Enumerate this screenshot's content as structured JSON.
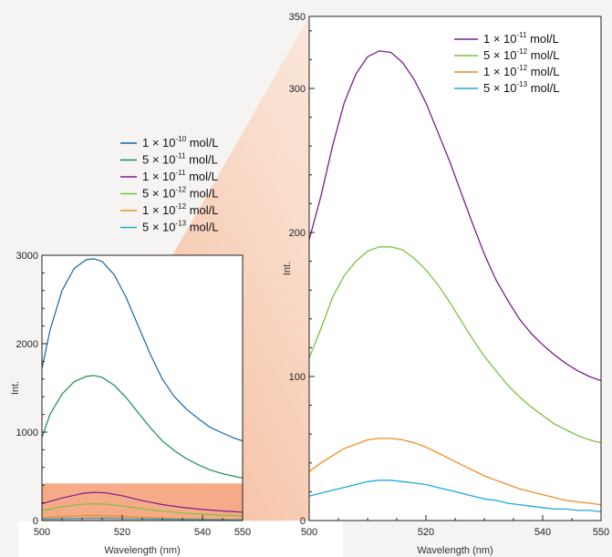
{
  "chart_data": [
    {
      "type": "line",
      "xlabel": "Wavelength (nm)",
      "ylabel": "Int.",
      "xlim": [
        500,
        550
      ],
      "ylim": [
        0,
        3000
      ],
      "xticks": [
        "500",
        "520",
        "540",
        "550"
      ],
      "yticks": [
        "0",
        "1000",
        "2000",
        "3000"
      ],
      "legend_position": "top",
      "zoom_band_ylim": [
        0,
        420
      ],
      "series": [
        {
          "name": "1 × 10-10 mol/L",
          "base": "1 × 10",
          "exp": "-10",
          "unit": " mol/L",
          "color": "#1565a8",
          "x": [
            500,
            502,
            505,
            508,
            511,
            513,
            515,
            518,
            521,
            524,
            527,
            530,
            533,
            536,
            539,
            542,
            545,
            548,
            550
          ],
          "y": [
            1720,
            2150,
            2600,
            2850,
            2950,
            2960,
            2930,
            2780,
            2520,
            2200,
            1880,
            1600,
            1400,
            1260,
            1150,
            1050,
            990,
            930,
            900
          ]
        },
        {
          "name": "5 × 10-11 mol/L",
          "base": "5 × 10",
          "exp": "-11",
          "unit": " mol/L",
          "color": "#14904a",
          "x": [
            500,
            502,
            505,
            508,
            511,
            513,
            515,
            518,
            521,
            524,
            527,
            530,
            533,
            536,
            539,
            542,
            545,
            548,
            550
          ],
          "y": [
            940,
            1200,
            1430,
            1570,
            1630,
            1640,
            1620,
            1530,
            1390,
            1220,
            1050,
            900,
            790,
            700,
            630,
            570,
            530,
            500,
            480
          ]
        },
        {
          "name": "1 × 10-11 mol/L",
          "base": "1 × 10",
          "exp": "-11",
          "unit": " mol/L",
          "color": "#7b1e8a",
          "x": [
            500,
            505,
            510,
            513,
            516,
            520,
            525,
            530,
            535,
            540,
            545,
            550
          ],
          "y": [
            190,
            255,
            305,
            320,
            312,
            280,
            225,
            180,
            148,
            125,
            108,
            95
          ]
        },
        {
          "name": "5 × 10-12 mol/L",
          "base": "5 × 10",
          "exp": "-12",
          "unit": " mol/L",
          "color": "#7cc142",
          "x": [
            500,
            505,
            510,
            513,
            516,
            520,
            525,
            530,
            535,
            540,
            545,
            550
          ],
          "y": [
            113,
            155,
            183,
            190,
            185,
            165,
            133,
            105,
            85,
            72,
            61,
            53
          ]
        },
        {
          "name": "1 × 10-12 mol/L",
          "base": "1 × 10",
          "exp": "-12",
          "unit": " mol/L",
          "color": "#f08c1e",
          "x": [
            500,
            505,
            510,
            513,
            516,
            520,
            525,
            530,
            535,
            540,
            545,
            550
          ],
          "y": [
            34,
            46,
            55,
            57,
            54,
            48,
            38,
            29,
            22,
            17,
            13,
            10
          ]
        },
        {
          "name": "5 × 10-13 mol/L",
          "base": "5 × 10",
          "exp": "-13",
          "unit": " mol/L",
          "color": "#1ea8e0",
          "x": [
            500,
            505,
            510,
            513,
            516,
            520,
            525,
            530,
            535,
            540,
            545,
            550
          ],
          "y": [
            17,
            22,
            26,
            28,
            27,
            24,
            19,
            15,
            11,
            9,
            7,
            6
          ]
        }
      ]
    },
    {
      "type": "line",
      "xlabel": "Wavelength (nm)",
      "ylabel": "Int.",
      "xlim": [
        500,
        550
      ],
      "ylim": [
        0,
        350
      ],
      "xticks": [
        "500",
        "520",
        "540",
        "550"
      ],
      "yticks": [
        "100",
        "200",
        "300",
        "350"
      ],
      "y_zero_label": "0",
      "legend_position": "top-right",
      "series": [
        {
          "name": "1 × 10-11 mol/L",
          "base": "1 × 10",
          "exp": "-11",
          "unit": " mol/L",
          "color": "#7b1e8a",
          "x": [
            500,
            502,
            504,
            506,
            508,
            510,
            512,
            514,
            516,
            518,
            520,
            522,
            524,
            526,
            528,
            530,
            532,
            534,
            536,
            538,
            540,
            542,
            544,
            546,
            548,
            550
          ],
          "y": [
            195,
            225,
            260,
            290,
            310,
            322,
            326,
            325,
            318,
            306,
            290,
            270,
            250,
            228,
            206,
            185,
            167,
            153,
            140,
            130,
            122,
            115,
            109,
            104,
            100,
            97
          ]
        },
        {
          "name": "5 × 10-12 mol/L",
          "base": "5 × 10",
          "exp": "-12",
          "unit": " mol/L",
          "color": "#7cc142",
          "x": [
            500,
            502,
            504,
            506,
            508,
            510,
            512,
            514,
            516,
            518,
            520,
            522,
            524,
            526,
            528,
            530,
            532,
            534,
            536,
            538,
            540,
            542,
            544,
            546,
            548,
            550
          ],
          "y": [
            113,
            133,
            155,
            170,
            180,
            187,
            190,
            190,
            188,
            182,
            174,
            164,
            152,
            139,
            126,
            114,
            104,
            94,
            86,
            79,
            73,
            67,
            63,
            59,
            56,
            54
          ]
        },
        {
          "name": "1 × 10-12 mol/L",
          "base": "1 × 10",
          "exp": "-12",
          "unit": " mol/L",
          "color": "#f08c1e",
          "x": [
            500,
            502,
            504,
            506,
            508,
            510,
            512,
            514,
            516,
            518,
            520,
            522,
            524,
            526,
            528,
            530,
            532,
            534,
            536,
            538,
            540,
            542,
            544,
            546,
            548,
            550
          ],
          "y": [
            34,
            40,
            45,
            50,
            53,
            56,
            57,
            57,
            56,
            54,
            51,
            47,
            43,
            39,
            35,
            31,
            28,
            25,
            22,
            20,
            18,
            16,
            14,
            13,
            12,
            11
          ]
        },
        {
          "name": "5 × 10-13 mol/L",
          "base": "5 × 10",
          "exp": "-13",
          "unit": " mol/L",
          "color": "#1ea8e0",
          "x": [
            500,
            502,
            504,
            506,
            508,
            510,
            512,
            514,
            516,
            518,
            520,
            522,
            524,
            526,
            528,
            530,
            532,
            534,
            536,
            538,
            540,
            542,
            544,
            546,
            548,
            550
          ],
          "y": [
            17,
            19,
            21,
            23,
            25,
            27,
            28,
            28,
            27,
            26,
            25,
            23,
            21,
            19,
            17,
            15,
            14,
            12,
            11,
            10,
            9,
            8,
            8,
            7,
            7,
            6
          ]
        }
      ]
    }
  ]
}
